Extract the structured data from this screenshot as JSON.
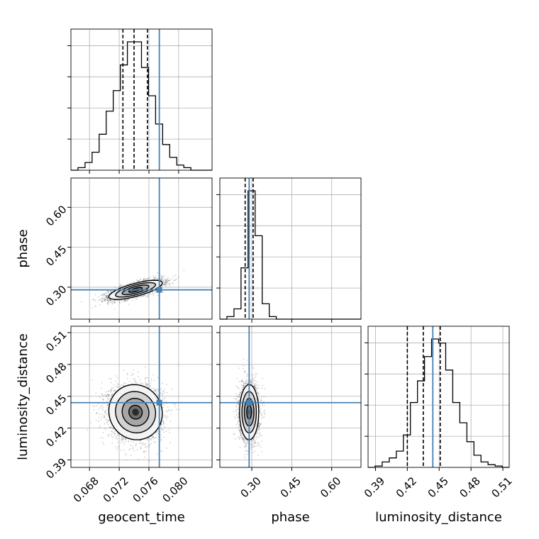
{
  "chart_data": {
    "type": "corner",
    "parameters": [
      {
        "key": "geocent_time",
        "label": "geocent_time",
        "range": [
          0.0655,
          0.0845
        ],
        "ticks": [
          0.068,
          0.072,
          0.076,
          0.08
        ],
        "tick_labels": [
          "0.068",
          "0.072",
          "0.076",
          "0.080"
        ],
        "truth": 0.0774,
        "quantiles": [
          0.0725,
          0.074,
          0.0758
        ]
      },
      {
        "key": "phase",
        "label": "phase",
        "range": [
          0.18,
          0.71
        ],
        "ticks": [
          0.3,
          0.45,
          0.6
        ],
        "tick_labels": [
          "0.30",
          "0.45",
          "0.60"
        ],
        "truth": 0.29,
        "quantiles": [
          0.275,
          0.29,
          0.305
        ]
      },
      {
        "key": "luminosity_distance",
        "label": "luminosity_distance",
        "range": [
          0.383,
          0.516
        ],
        "ticks": [
          0.39,
          0.42,
          0.45,
          0.48,
          0.51
        ],
        "tick_labels": [
          "0.39",
          "0.42",
          "0.45",
          "0.48",
          "0.51"
        ],
        "truth": 0.444,
        "quantiles": [
          0.42,
          0.435,
          0.451
        ]
      }
    ],
    "histograms": [
      {
        "param": "geocent_time",
        "edges_range": [
          0.0655,
          0.0845
        ],
        "counts": [
          0,
          2,
          6,
          14,
          28,
          46,
          62,
          82,
          100,
          100,
          80,
          58,
          36,
          20,
          10,
          4,
          2,
          0,
          0,
          0
        ]
      },
      {
        "param": "phase",
        "edges_range": [
          0.18,
          0.71
        ],
        "counts": [
          0,
          2,
          8,
          40,
          100,
          65,
          12,
          2,
          0,
          0,
          0,
          0,
          0,
          0,
          0,
          0,
          0,
          0,
          0,
          0
        ]
      },
      {
        "param": "luminosity_distance",
        "edges_range": [
          0.383,
          0.516
        ],
        "counts": [
          0,
          1,
          4,
          7,
          12,
          24,
          48,
          64,
          82,
          95,
          92,
          72,
          48,
          33,
          19,
          9,
          4,
          2,
          1,
          0
        ]
      }
    ],
    "joint": [
      {
        "x": "geocent_time",
        "y": "phase",
        "mean": [
          0.0742,
          0.29
        ],
        "sd": [
          0.0018,
          0.018
        ],
        "rho": 0.72,
        "n_samples": 3000
      },
      {
        "x": "geocent_time",
        "y": "luminosity_distance",
        "mean": [
          0.0742,
          0.435
        ],
        "sd": [
          0.0018,
          0.013
        ],
        "rho": -0.05,
        "n_samples": 3000
      },
      {
        "x": "phase",
        "y": "luminosity_distance",
        "mean": [
          0.29,
          0.435
        ],
        "sd": [
          0.018,
          0.013
        ],
        "rho": 0.0,
        "n_samples": 3000
      }
    ],
    "contour_levels_sigma": [
      0.5,
      1.0,
      1.5,
      2.0
    ],
    "colors": {
      "truth": "#4682b4",
      "hist": "#000000",
      "grid": "#b0b0b0",
      "points": "#000000"
    },
    "grid": true,
    "xlabel": "",
    "ylabel": ""
  }
}
